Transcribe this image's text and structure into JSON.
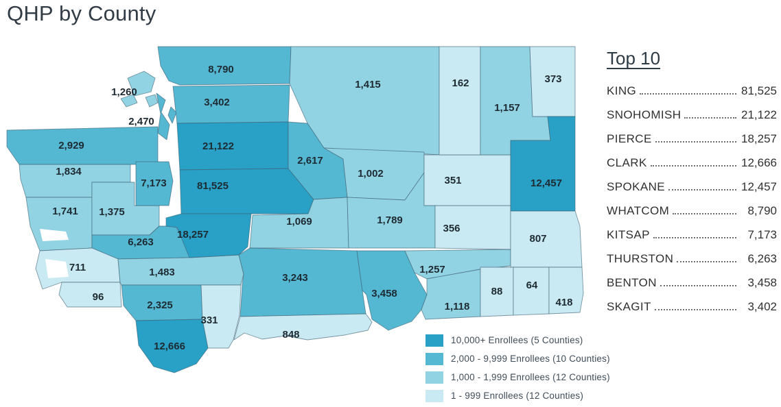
{
  "page_title": "QHP by County",
  "top10": {
    "title": "Top 10",
    "rows": [
      {
        "name": "KING",
        "value": "81,525"
      },
      {
        "name": "SNOHOMISH",
        "value": "21,122"
      },
      {
        "name": "PIERCE",
        "value": "18,257"
      },
      {
        "name": "CLARK",
        "value": "12,666"
      },
      {
        "name": "SPOKANE",
        "value": "12,457"
      },
      {
        "name": "WHATCOM",
        "value": "8,790"
      },
      {
        "name": "KITSAP",
        "value": "7,173"
      },
      {
        "name": "THURSTON",
        "value": "6,263"
      },
      {
        "name": "BENTON",
        "value": "3,458"
      },
      {
        "name": "SKAGIT",
        "value": "3,402"
      }
    ]
  },
  "legend": {
    "items": [
      {
        "label": "10,000+ Enrollees (5 Counties)",
        "color": "#29A0C6"
      },
      {
        "label": "2,000 - 9,999 Enrollees (10 Counties)",
        "color": "#55B8D3"
      },
      {
        "label": "1,000 - 1,999 Enrollees (12 Counties)",
        "color": "#92D3E3"
      },
      {
        "label": "1 - 999 Enrollees (12 Counties)",
        "color": "#CAEAF3"
      }
    ]
  },
  "map": {
    "counties": [
      {
        "name": "Clallam",
        "value": "2,929",
        "bucket": 1
      },
      {
        "name": "Jefferson",
        "value": "1,834",
        "bucket": 2
      },
      {
        "name": "Grays Harbor",
        "value": "1,741",
        "bucket": 2
      },
      {
        "name": "Mason",
        "value": "1,375",
        "bucket": 2
      },
      {
        "name": "Kitsap",
        "value": "7,173",
        "bucket": 1
      },
      {
        "name": "Thurston",
        "value": "6,263",
        "bucket": 1
      },
      {
        "name": "Pacific",
        "value": "711",
        "bucket": 3
      },
      {
        "name": "Wahkiakum",
        "value": "96",
        "bucket": 3
      },
      {
        "name": "Lewis",
        "value": "1,483",
        "bucket": 2
      },
      {
        "name": "Cowlitz",
        "value": "2,325",
        "bucket": 1
      },
      {
        "name": "Clark",
        "value": "12,666",
        "bucket": 0
      },
      {
        "name": "Skamania",
        "value": "331",
        "bucket": 3
      },
      {
        "name": "San Juan",
        "value": "1,260",
        "bucket": 2
      },
      {
        "name": "Island",
        "value": "2,470",
        "bucket": 1
      },
      {
        "name": "Whatcom",
        "value": "8,790",
        "bucket": 1
      },
      {
        "name": "Skagit",
        "value": "3,402",
        "bucket": 1
      },
      {
        "name": "Snohomish",
        "value": "21,122",
        "bucket": 0
      },
      {
        "name": "King",
        "value": "81,525",
        "bucket": 0
      },
      {
        "name": "Pierce",
        "value": "18,257",
        "bucket": 0
      },
      {
        "name": "Okanogan",
        "value": "1,415",
        "bucket": 2
      },
      {
        "name": "Chelan",
        "value": "2,617",
        "bucket": 1
      },
      {
        "name": "Douglas",
        "value": "1,002",
        "bucket": 2
      },
      {
        "name": "Kittitas",
        "value": "1,069",
        "bucket": 2
      },
      {
        "name": "Grant",
        "value": "1,789",
        "bucket": 2
      },
      {
        "name": "Yakima",
        "value": "3,243",
        "bucket": 1
      },
      {
        "name": "Klickitat",
        "value": "848",
        "bucket": 3
      },
      {
        "name": "Benton",
        "value": "3,458",
        "bucket": 1
      },
      {
        "name": "Franklin",
        "value": "1,257",
        "bucket": 2
      },
      {
        "name": "Walla Walla",
        "value": "1,118",
        "bucket": 2
      },
      {
        "name": "Adams",
        "value": "356",
        "bucket": 3
      },
      {
        "name": "Lincoln",
        "value": "351",
        "bucket": 3
      },
      {
        "name": "Ferry",
        "value": "162",
        "bucket": 3
      },
      {
        "name": "Stevens",
        "value": "1,157",
        "bucket": 2
      },
      {
        "name": "Pend Oreille",
        "value": "373",
        "bucket": 3
      },
      {
        "name": "Spokane",
        "value": "12,457",
        "bucket": 0
      },
      {
        "name": "Whitman",
        "value": "807",
        "bucket": 3
      },
      {
        "name": "Columbia",
        "value": "88",
        "bucket": 3
      },
      {
        "name": "Garfield",
        "value": "64",
        "bucket": 3
      },
      {
        "name": "Asotin",
        "value": "418",
        "bucket": 3
      }
    ]
  },
  "chart_data": {
    "type": "heatmap",
    "subtype": "choropleth-map",
    "title": "QHP by County",
    "region": "Washington State counties",
    "categories": [
      "King",
      "Snohomish",
      "Pierce",
      "Clark",
      "Spokane",
      "Whatcom",
      "Kitsap",
      "Thurston",
      "Benton",
      "Skagit",
      "Yakima",
      "Clallam",
      "Chelan",
      "Island",
      "Cowlitz",
      "Jefferson",
      "Grant",
      "Grays Harbor",
      "Lewis",
      "Okanogan",
      "Mason",
      "San Juan",
      "Franklin",
      "Stevens",
      "Walla Walla",
      "Kittitas",
      "Douglas",
      "Klickitat",
      "Whitman",
      "Pacific",
      "Asotin",
      "Pend Oreille",
      "Adams",
      "Lincoln",
      "Skamania",
      "Ferry",
      "Wahkiakum",
      "Columbia",
      "Garfield"
    ],
    "values": [
      81525,
      21122,
      18257,
      12666,
      12457,
      8790,
      7173,
      6263,
      3458,
      3402,
      3243,
      2929,
      2617,
      2470,
      2325,
      1834,
      1789,
      1741,
      1483,
      1415,
      1375,
      1260,
      1257,
      1157,
      1118,
      1069,
      1002,
      848,
      807,
      711,
      418,
      373,
      356,
      351,
      331,
      162,
      96,
      88,
      64
    ],
    "buckets": [
      {
        "range": "10,000+",
        "count": 5,
        "color": "#29A0C6"
      },
      {
        "range": "2,000 - 9,999",
        "count": 10,
        "color": "#55B8D3"
      },
      {
        "range": "1,000 - 1,999",
        "count": 12,
        "color": "#92D3E3"
      },
      {
        "range": "1 - 999",
        "count": 12,
        "color": "#CAEAF3"
      }
    ],
    "legend_position": "bottom-right",
    "annotation": "each county is labeled with its enrollee count"
  }
}
